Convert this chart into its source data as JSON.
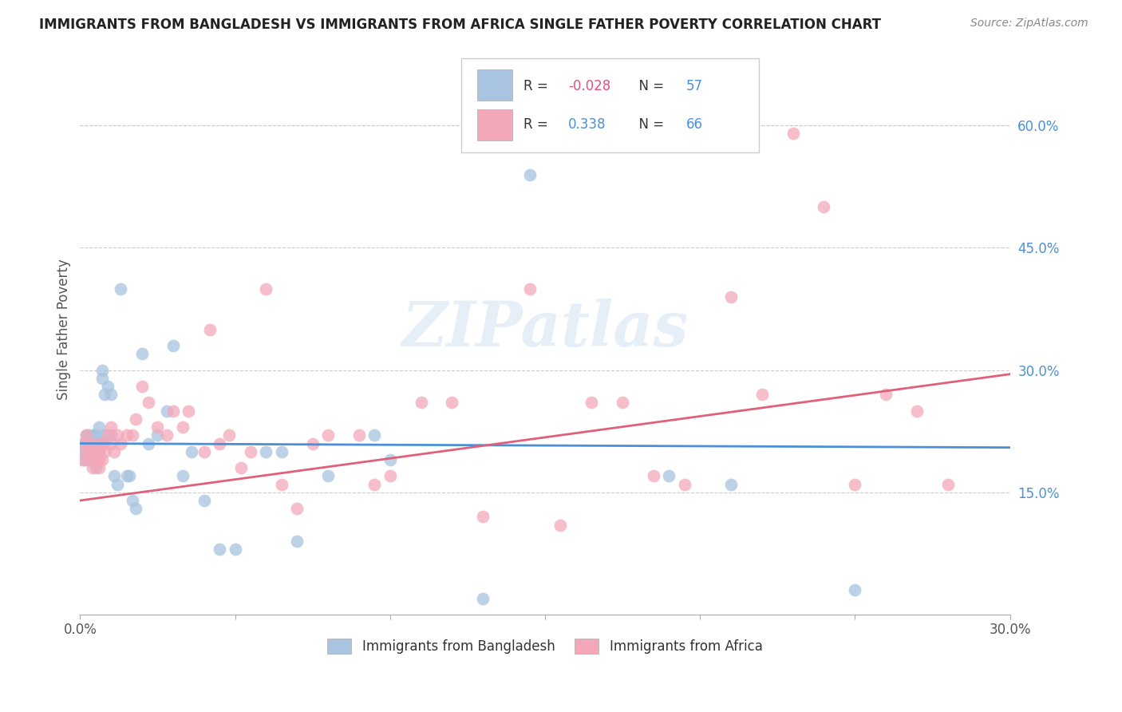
{
  "title": "IMMIGRANTS FROM BANGLADESH VS IMMIGRANTS FROM AFRICA SINGLE FATHER POVERTY CORRELATION CHART",
  "source": "Source: ZipAtlas.com",
  "ylabel": "Single Father Poverty",
  "xlim": [
    0.0,
    0.3
  ],
  "ylim": [
    0.0,
    0.7
  ],
  "x_ticks": [
    0.0,
    0.05,
    0.1,
    0.15,
    0.2,
    0.25,
    0.3
  ],
  "x_tick_labels": [
    "0.0%",
    "",
    "",
    "",
    "",
    "",
    "30.0%"
  ],
  "y_ticks_right": [
    0.15,
    0.3,
    0.45,
    0.6
  ],
  "y_tick_labels_right": [
    "15.0%",
    "30.0%",
    "45.0%",
    "60.0%"
  ],
  "legend_labels": [
    "Immigrants from Bangladesh",
    "Immigrants from Africa"
  ],
  "R_bangladesh": -0.028,
  "N_bangladesh": 57,
  "R_africa": 0.338,
  "N_africa": 66,
  "color_bangladesh": "#a8c4e0",
  "color_africa": "#f4a7b9",
  "line_color_bangladesh": "#4a90d9",
  "line_color_africa": "#e0607a",
  "watermark": "ZIPatlas",
  "bd_line_y0": 0.21,
  "bd_line_y1": 0.205,
  "af_line_y0": 0.14,
  "af_line_y1": 0.295,
  "bangladesh_x": [
    0.001,
    0.001,
    0.001,
    0.002,
    0.002,
    0.002,
    0.002,
    0.003,
    0.003,
    0.003,
    0.003,
    0.003,
    0.004,
    0.004,
    0.004,
    0.005,
    0.005,
    0.005,
    0.005,
    0.006,
    0.006,
    0.006,
    0.007,
    0.007,
    0.008,
    0.008,
    0.009,
    0.01,
    0.01,
    0.011,
    0.012,
    0.013,
    0.015,
    0.016,
    0.017,
    0.018,
    0.02,
    0.022,
    0.025,
    0.028,
    0.03,
    0.033,
    0.036,
    0.04,
    0.045,
    0.05,
    0.06,
    0.065,
    0.07,
    0.08,
    0.095,
    0.1,
    0.13,
    0.145,
    0.19,
    0.21,
    0.25
  ],
  "bangladesh_y": [
    0.2,
    0.21,
    0.19,
    0.21,
    0.22,
    0.2,
    0.19,
    0.21,
    0.2,
    0.22,
    0.19,
    0.2,
    0.21,
    0.2,
    0.22,
    0.21,
    0.2,
    0.22,
    0.18,
    0.2,
    0.21,
    0.23,
    0.29,
    0.3,
    0.27,
    0.22,
    0.28,
    0.27,
    0.22,
    0.17,
    0.16,
    0.4,
    0.17,
    0.17,
    0.14,
    0.13,
    0.32,
    0.21,
    0.22,
    0.25,
    0.33,
    0.17,
    0.2,
    0.14,
    0.08,
    0.08,
    0.2,
    0.2,
    0.09,
    0.17,
    0.22,
    0.19,
    0.02,
    0.54,
    0.17,
    0.16,
    0.03
  ],
  "africa_x": [
    0.001,
    0.001,
    0.002,
    0.002,
    0.003,
    0.003,
    0.003,
    0.004,
    0.004,
    0.005,
    0.005,
    0.005,
    0.006,
    0.006,
    0.006,
    0.007,
    0.007,
    0.008,
    0.008,
    0.009,
    0.01,
    0.01,
    0.011,
    0.012,
    0.013,
    0.015,
    0.017,
    0.018,
    0.02,
    0.022,
    0.025,
    0.028,
    0.03,
    0.033,
    0.035,
    0.04,
    0.042,
    0.045,
    0.048,
    0.052,
    0.055,
    0.06,
    0.065,
    0.07,
    0.075,
    0.08,
    0.09,
    0.095,
    0.1,
    0.11,
    0.12,
    0.13,
    0.145,
    0.155,
    0.165,
    0.175,
    0.185,
    0.195,
    0.21,
    0.22,
    0.23,
    0.24,
    0.25,
    0.26,
    0.27,
    0.28
  ],
  "africa_y": [
    0.19,
    0.21,
    0.2,
    0.22,
    0.19,
    0.2,
    0.21,
    0.2,
    0.18,
    0.2,
    0.21,
    0.19,
    0.2,
    0.18,
    0.19,
    0.21,
    0.19,
    0.21,
    0.2,
    0.22,
    0.21,
    0.23,
    0.2,
    0.22,
    0.21,
    0.22,
    0.22,
    0.24,
    0.28,
    0.26,
    0.23,
    0.22,
    0.25,
    0.23,
    0.25,
    0.2,
    0.35,
    0.21,
    0.22,
    0.18,
    0.2,
    0.4,
    0.16,
    0.13,
    0.21,
    0.22,
    0.22,
    0.16,
    0.17,
    0.26,
    0.26,
    0.12,
    0.4,
    0.11,
    0.26,
    0.26,
    0.17,
    0.16,
    0.39,
    0.27,
    0.59,
    0.5,
    0.16,
    0.27,
    0.25,
    0.16
  ]
}
